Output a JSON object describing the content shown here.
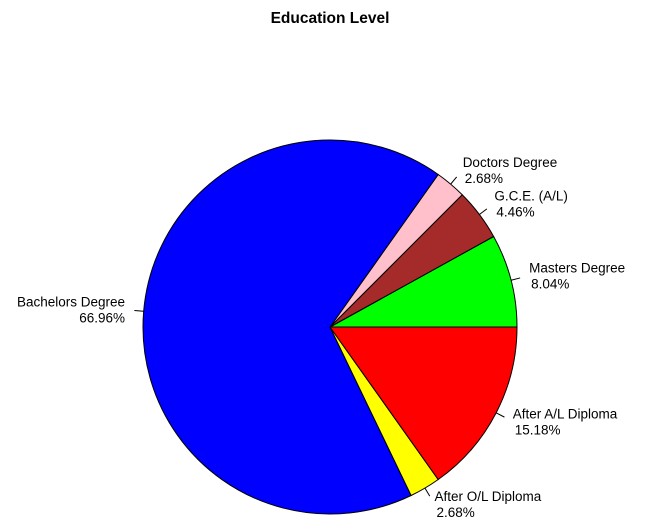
{
  "chart_data": {
    "type": "pie",
    "title": "Education Level",
    "direction": "counterclockwise from 3 o'clock",
    "slices": [
      {
        "label": "Masters Degree",
        "percent_label": "8.04%",
        "value": 8.04,
        "color": "#00ff00"
      },
      {
        "label": "G.C.E. (A/L)",
        "percent_label": "4.46%",
        "value": 4.46,
        "color": "#a52a2a"
      },
      {
        "label": "Doctors Degree",
        "percent_label": "2.68%",
        "value": 2.68,
        "color": "#ffc0cb"
      },
      {
        "label": "Bachelors Degree",
        "percent_label": "66.96%",
        "value": 66.96,
        "color": "#0000ff"
      },
      {
        "label": "After O/L Diploma",
        "percent_label": "2.68%",
        "value": 2.68,
        "color": "#ffff00"
      },
      {
        "label": "After A/L Diploma",
        "percent_label": "15.18%",
        "value": 15.18,
        "color": "#ff0000"
      }
    ]
  }
}
